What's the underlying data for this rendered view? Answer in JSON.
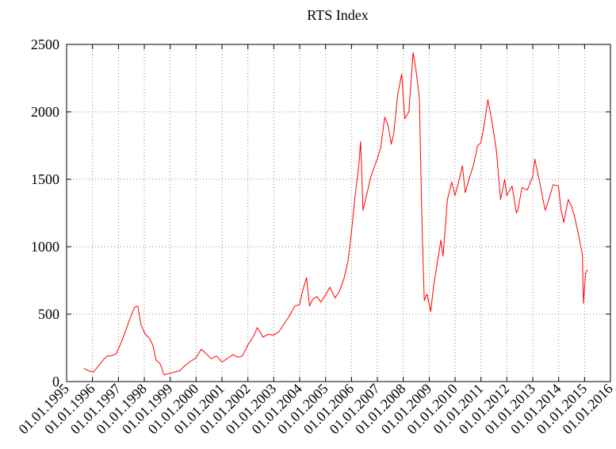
{
  "chart_data": {
    "type": "line",
    "title": "RTS Index",
    "xlabel": "",
    "ylabel": "",
    "x_ticks": [
      "01.01.1995",
      "01.01.1996",
      "01.01.1997",
      "01.01.1998",
      "01.01.1999",
      "01.01.2000",
      "01.01.2001",
      "01.01.2002",
      "01.01.2003",
      "01.01.2004",
      "01.01.2005",
      "01.01.2006",
      "01.01.2007",
      "01.01.2008",
      "01.01.2009",
      "01.01.2010",
      "01.01.2011",
      "01.01.2012",
      "01.01.2013",
      "01.01.2014",
      "01.01.2015",
      "01.01.2016"
    ],
    "y_ticks": [
      "0",
      "500",
      "1000",
      "1500",
      "2000",
      "2500"
    ],
    "xlim": [
      "1995-01-01",
      "2016-01-01"
    ],
    "ylim": [
      0,
      2500
    ],
    "grid": true,
    "legend": "none",
    "color": "#ff0000",
    "series": [
      {
        "x": [
          "1995-09-01",
          "1995-11-01",
          "1996-01-15",
          "1996-04-01",
          "1996-06-15",
          "1996-08-01",
          "1996-09-15",
          "1996-12-01",
          "1997-02-01",
          "1997-04-01",
          "1997-06-01",
          "1997-08-15",
          "1997-10-01",
          "1997-11-15",
          "1998-01-15",
          "1998-03-15",
          "1998-05-01",
          "1998-06-15",
          "1998-08-15",
          "1998-10-05",
          "1998-12-15",
          "1999-03-01",
          "1999-05-15",
          "1999-08-01",
          "1999-10-15",
          "1999-12-30",
          "2000-03-15",
          "2000-05-15",
          "2000-08-01",
          "2000-10-15",
          "2000-12-30",
          "2001-03-15",
          "2001-06-01",
          "2001-08-15",
          "2001-10-15",
          "2001-12-30",
          "2002-03-15",
          "2002-05-15",
          "2002-08-01",
          "2002-10-15",
          "2002-12-30",
          "2003-03-15",
          "2003-05-15",
          "2003-08-01",
          "2003-10-25",
          "2003-12-30",
          "2004-02-15",
          "2004-04-07",
          "2004-05-20",
          "2004-07-01",
          "2004-09-01",
          "2004-10-25",
          "2004-12-30",
          "2005-03-01",
          "2005-05-15",
          "2005-07-15",
          "2005-09-15",
          "2005-11-15",
          "2005-12-30",
          "2006-02-15",
          "2006-04-15",
          "2006-05-10",
          "2006-06-13",
          "2006-08-01",
          "2006-10-01",
          "2006-12-30",
          "2007-02-15",
          "2007-04-15",
          "2007-06-01",
          "2007-07-15",
          "2007-08-20",
          "2007-10-15",
          "2007-12-10",
          "2008-01-23",
          "2008-03-20",
          "2008-05-19",
          "2008-07-01",
          "2008-08-15",
          "2008-09-16",
          "2008-10-06",
          "2008-10-24",
          "2008-12-01",
          "2009-01-23",
          "2009-03-01",
          "2009-05-01",
          "2009-06-15",
          "2009-07-15",
          "2009-09-15",
          "2009-11-15",
          "2009-12-30",
          "2010-02-15",
          "2010-04-15",
          "2010-05-25",
          "2010-07-15",
          "2010-09-15",
          "2010-11-15",
          "2010-12-30",
          "2011-02-15",
          "2011-04-08",
          "2011-06-15",
          "2011-08-09",
          "2011-10-04",
          "2011-12-01",
          "2011-12-30",
          "2012-03-15",
          "2012-05-15",
          "2012-06-04",
          "2012-08-01",
          "2012-10-15",
          "2012-12-30",
          "2013-01-28",
          "2013-04-15",
          "2013-06-24",
          "2013-08-15",
          "2013-10-15",
          "2013-12-30",
          "2014-02-01",
          "2014-03-14",
          "2014-05-15",
          "2014-07-01",
          "2014-08-15",
          "2014-10-15",
          "2014-12-01",
          "2014-12-16",
          "2015-01-15",
          "2015-02-10"
        ],
        "y": [
          100,
          80,
          70,
          120,
          170,
          190,
          190,
          205,
          280,
          360,
          450,
          550,
          560,
          420,
          350,
          320,
          270,
          160,
          130,
          50,
          60,
          70,
          80,
          120,
          150,
          175,
          240,
          210,
          170,
          190,
          145,
          170,
          200,
          180,
          190,
          270,
          330,
          400,
          330,
          350,
          345,
          370,
          420,
          480,
          560,
          570,
          680,
          770,
          560,
          610,
          630,
          590,
          640,
          700,
          620,
          670,
          760,
          900,
          1100,
          1350,
          1610,
          1780,
          1270,
          1380,
          1520,
          1650,
          1730,
          1960,
          1900,
          1760,
          1840,
          2130,
          2280,
          1950,
          2000,
          2440,
          2300,
          2100,
          1300,
          900,
          600,
          650,
          520,
          700,
          900,
          1050,
          930,
          1350,
          1480,
          1380,
          1470,
          1600,
          1400,
          1500,
          1600,
          1750,
          1770,
          1900,
          2090,
          1900,
          1700,
          1350,
          1500,
          1380,
          1450,
          1250,
          1270,
          1440,
          1420,
          1520,
          1650,
          1460,
          1270,
          1350,
          1460,
          1450,
          1280,
          1180,
          1350,
          1300,
          1220,
          1070,
          940,
          580,
          800,
          830
        ]
      }
    ]
  }
}
